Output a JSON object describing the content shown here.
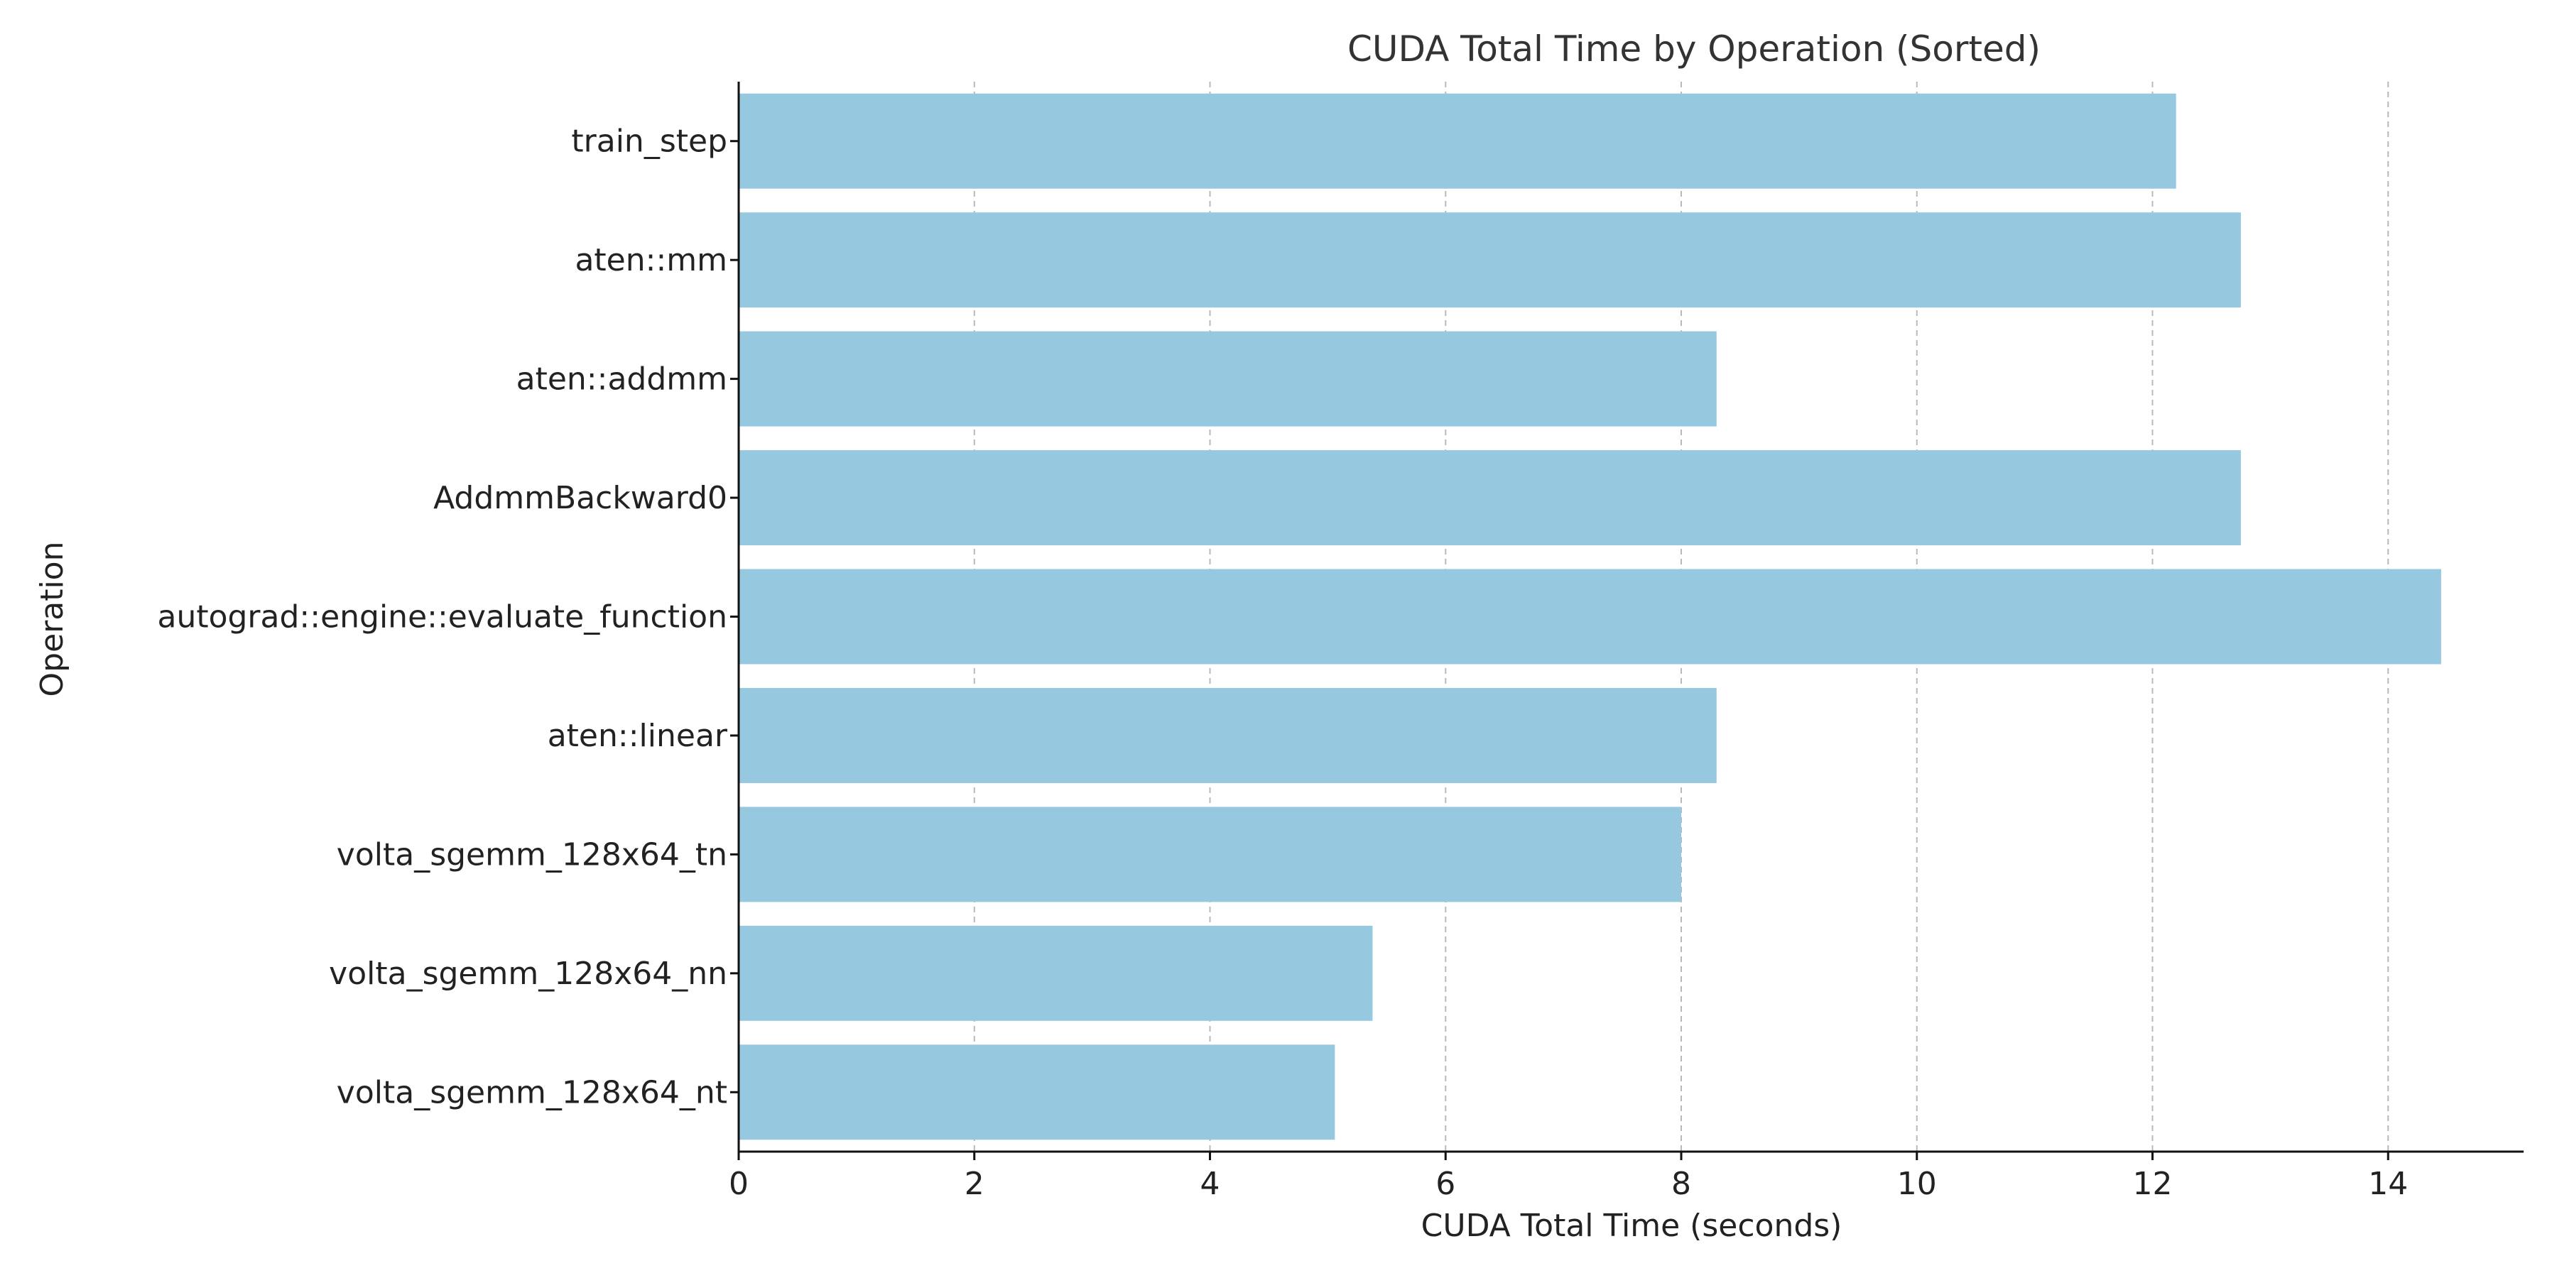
{
  "chart_data": {
    "type": "bar",
    "orientation": "horizontal",
    "title": "CUDA Total Time by Operation (Sorted)",
    "xlabel": "CUDA Total Time (seconds)",
    "ylabel": "Operation",
    "categories": [
      "train_step",
      "aten::mm",
      "aten::addmm",
      "AddmmBackward0",
      "autograd::engine::evaluate_function",
      "aten::linear",
      "volta_sgemm_128x64_tn",
      "volta_sgemm_128x64_nn",
      "volta_sgemm_128x64_nt"
    ],
    "values": [
      12.2,
      12.75,
      8.3,
      12.75,
      14.45,
      8.3,
      8.0,
      5.38,
      5.06
    ],
    "xlim": [
      0,
      15.15
    ],
    "xticks": [
      0,
      2,
      4,
      6,
      8,
      10,
      12,
      14
    ],
    "grid": "x-dashed",
    "legend": "none",
    "colors": {
      "bar": "#96c9df",
      "axis": "#111111",
      "grid": "#b9b9b9",
      "title": "#333333"
    }
  }
}
